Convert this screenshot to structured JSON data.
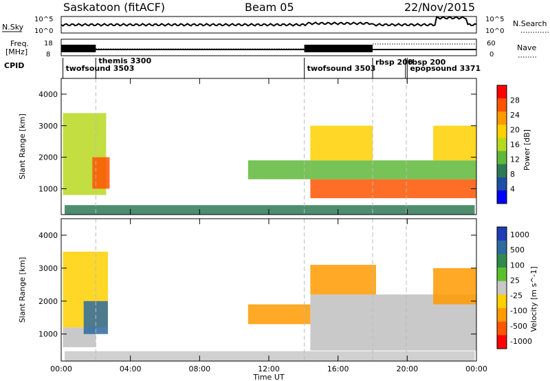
{
  "header": {
    "site": "Saskatoon (fitACF)",
    "beam": "Beam 05",
    "date": "22/Nov/2015"
  },
  "top_panels": {
    "nsky_label": "N.Sky",
    "nsky_ticks": [
      "10^5",
      "10^0"
    ],
    "nsearch_label": "N.Search",
    "freq_label_line1": "Freq.",
    "freq_label_line2": "[MHz]",
    "freq_ticks": [
      "18",
      "8"
    ],
    "nave_ticks": [
      "60",
      "0"
    ],
    "nave_label": "Nave",
    "cpid_label": "CPID",
    "cpid_entries": [
      {
        "text": "twofsound 3503",
        "t": 0.1
      },
      {
        "text": "themis 3300",
        "t": 2.0
      },
      {
        "text": "twofsound 3503",
        "t": 14.05
      },
      {
        "text": "rbsp 200",
        "t": 18.0
      },
      {
        "text": "rbsp 200",
        "t": 19.9
      },
      {
        "text": "epopsound 3371",
        "t": 20.0
      }
    ]
  },
  "colors": {
    "power_scale": [
      "#0000ff",
      "#1e4fa3",
      "#2f7a55",
      "#5fb83a",
      "#b8d820",
      "#ffd000",
      "#ff9a00",
      "#ff5500",
      "#ff0000"
    ],
    "velocity_scale": [
      "#1e3cb4",
      "#2e6aa0",
      "#2f8a4f",
      "#5cc02e",
      "#c8c8c8",
      "#ffd000",
      "#ff9a00",
      "#ff5500",
      "#ff0000"
    ],
    "ground_scatter": "#c0c0c0"
  },
  "chart_data": [
    {
      "type": "heatmap",
      "name": "power",
      "ylabel": "Slant Range [km]",
      "ylim": [
        180,
        4500
      ],
      "yticks": [
        1000,
        2000,
        3000,
        4000
      ],
      "xlim_hours": [
        0,
        24
      ],
      "colorbar_label": "Power [dB]",
      "colorbar_range": [
        0,
        32
      ],
      "colorbar_ticks": [
        "4",
        "8",
        "12",
        "16",
        "20",
        "24",
        "28"
      ],
      "cells": [
        {
          "t": 0.1,
          "t2": 2.6,
          "r": 800,
          "r2": 3400,
          "v": 17
        },
        {
          "t": 1.8,
          "t2": 2.8,
          "r": 1000,
          "r2": 2000,
          "v": 27
        },
        {
          "t": 0.2,
          "t2": 23.9,
          "r": 180,
          "r2": 480,
          "v": 10
        },
        {
          "t": 10.8,
          "t2": 14.4,
          "r": 1300,
          "r2": 1900,
          "v": 14
        },
        {
          "t": 14.4,
          "t2": 24.0,
          "r": 700,
          "r2": 1300,
          "v": 27
        },
        {
          "t": 14.4,
          "t2": 24.0,
          "r": 1300,
          "r2": 1900,
          "v": 12
        },
        {
          "t": 14.4,
          "t2": 18.0,
          "r": 1900,
          "r2": 3000,
          "v": 18
        },
        {
          "t": 21.5,
          "t2": 24.0,
          "r": 1900,
          "r2": 3000,
          "v": 19
        }
      ]
    },
    {
      "type": "heatmap",
      "name": "velocity",
      "ylabel": "Slant Range [km]",
      "ylim": [
        180,
        4500
      ],
      "yticks": [
        1000,
        2000,
        3000,
        4000
      ],
      "xlim_hours": [
        0,
        24
      ],
      "xticks": [
        "00:00",
        "04:00",
        "08:00",
        "12:00",
        "16:00",
        "20:00",
        "00:00"
      ],
      "xlabel": "Time UT",
      "colorbar_label": "Velocity [m s^-1]",
      "colorbar_ticks": [
        "1000",
        "500",
        "100",
        "25",
        "-25",
        "-100",
        "-500",
        "-1000"
      ],
      "cells": [
        {
          "t": 0.1,
          "t2": 2.0,
          "r": 600,
          "r2": 1200,
          "v": 0
        },
        {
          "t": 0.1,
          "t2": 2.7,
          "r": 1200,
          "r2": 3500,
          "v": -80
        },
        {
          "t": 1.3,
          "t2": 2.7,
          "r": 1000,
          "r2": 2000,
          "v": 150
        },
        {
          "t": 10.8,
          "t2": 14.4,
          "r": 1300,
          "r2": 1900,
          "v": -120
        },
        {
          "t": 14.4,
          "t2": 24.0,
          "r": 500,
          "r2": 2200,
          "v": 0
        },
        {
          "t": 14.4,
          "t2": 18.2,
          "r": 2200,
          "r2": 3100,
          "v": -150
        },
        {
          "t": 21.5,
          "t2": 24.0,
          "r": 1900,
          "r2": 3000,
          "v": -200
        },
        {
          "t": 0.2,
          "t2": 23.9,
          "r": 180,
          "r2": 480,
          "v": 20
        }
      ]
    }
  ],
  "annotations": {
    "vertical_dividers_hours": [
      2.0,
      14.05,
      18.0,
      19.95
    ]
  }
}
